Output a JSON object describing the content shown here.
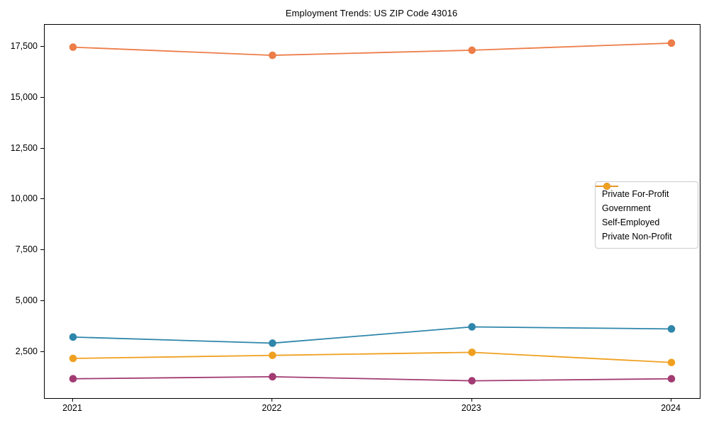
{
  "title": "Employment Trends: US ZIP Code 43016",
  "chart_data": {
    "type": "line",
    "title": "Employment Trends: US ZIP Code 43016",
    "xlabel": "",
    "ylabel": "",
    "x_labels": [
      "2021",
      "2022",
      "2023",
      "2024"
    ],
    "series": [
      {
        "name": "Private For-Profit",
        "color": "#ed7d49",
        "values": [
          17500,
          17100,
          17350,
          17700
        ]
      },
      {
        "name": "Government",
        "color": "#2e86ab",
        "values": [
          3250,
          2950,
          3750,
          3650
        ]
      },
      {
        "name": "Self-Employed",
        "color": "#a23b72",
        "values": [
          1200,
          1300,
          1100,
          1200
        ]
      },
      {
        "name": "Private Non-Profit",
        "color": "#f0a020",
        "values": [
          2200,
          2350,
          2500,
          2000
        ]
      }
    ],
    "ylim": [
      250,
      18600
    ],
    "yticks": [
      2500,
      5000,
      7500,
      10000,
      12500,
      15000,
      17500
    ],
    "ytick_labels": [
      "2,500",
      "5,000",
      "7,500",
      "10,000",
      "12,500",
      "15,000",
      "17,500"
    ],
    "grid": false,
    "legend_position": "center-right",
    "marker": "circle"
  }
}
